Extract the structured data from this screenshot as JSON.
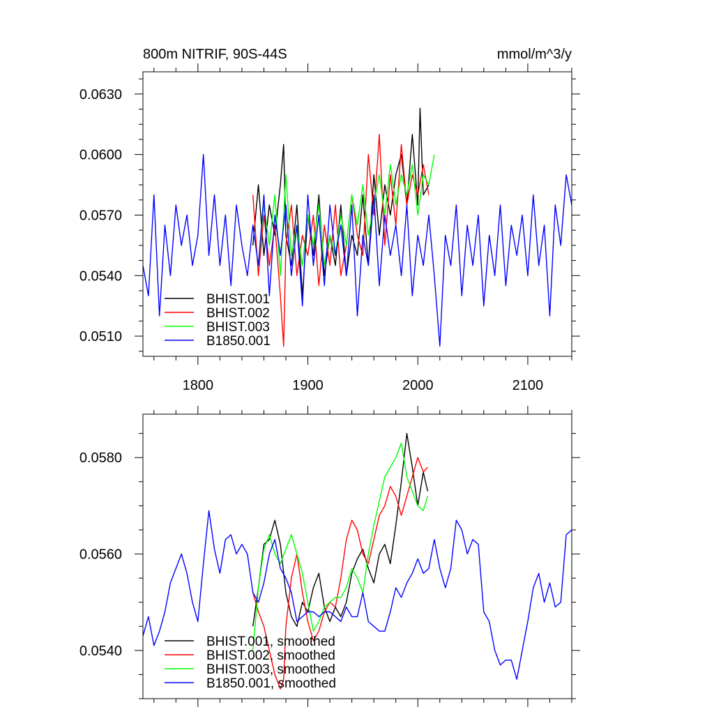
{
  "chart_data": [
    {
      "type": "line",
      "title": "800m NITRIF, 90S-44S",
      "units": "mmol/m^3/y",
      "xlim": [
        1750,
        2140
      ],
      "ylim": [
        0.05,
        0.0641
      ],
      "x_ticks": [
        1800,
        1900,
        2000,
        2100
      ],
      "x_tick_labels": [
        "1800",
        "1900",
        "2000",
        "2100"
      ],
      "y_ticks": [
        0.051,
        0.054,
        0.057,
        0.06,
        0.063
      ],
      "y_tick_labels": [
        "0.0510",
        "0.0540",
        "0.0570",
        "0.0600",
        "0.0630"
      ],
      "legend_position": "bottom-left",
      "series": [
        {
          "name": "BHIST.001",
          "color": "#000000",
          "x": [
            1850,
            1855,
            1860,
            1865,
            1870,
            1875,
            1878,
            1880,
            1885,
            1890,
            1895,
            1900,
            1905,
            1910,
            1915,
            1920,
            1925,
            1930,
            1935,
            1940,
            1945,
            1950,
            1955,
            1960,
            1965,
            1970,
            1975,
            1980,
            1985,
            1990,
            1995,
            2000,
            2002,
            2005,
            2010
          ],
          "y": [
            0.0555,
            0.0585,
            0.055,
            0.0575,
            0.056,
            0.0585,
            0.0605,
            0.056,
            0.0545,
            0.0575,
            0.053,
            0.057,
            0.055,
            0.058,
            0.054,
            0.056,
            0.0545,
            0.0575,
            0.054,
            0.056,
            0.055,
            0.058,
            0.0545,
            0.059,
            0.056,
            0.0585,
            0.057,
            0.059,
            0.06,
            0.0575,
            0.061,
            0.0575,
            0.0623,
            0.058,
            0.0585
          ]
        },
        {
          "name": "BHIST.002",
          "color": "#ff0000",
          "x": [
            1850,
            1855,
            1860,
            1865,
            1870,
            1875,
            1878,
            1880,
            1885,
            1890,
            1895,
            1900,
            1905,
            1910,
            1915,
            1920,
            1925,
            1930,
            1935,
            1940,
            1945,
            1950,
            1955,
            1960,
            1965,
            1970,
            1975,
            1980,
            1985,
            1990,
            1995,
            2000,
            2005,
            2010
          ],
          "y": [
            0.058,
            0.054,
            0.057,
            0.0545,
            0.0565,
            0.053,
            0.0505,
            0.0555,
            0.0575,
            0.054,
            0.056,
            0.055,
            0.057,
            0.0535,
            0.0565,
            0.0545,
            0.0575,
            0.054,
            0.0555,
            0.058,
            0.056,
            0.055,
            0.06,
            0.057,
            0.061,
            0.0555,
            0.059,
            0.0565,
            0.0605,
            0.0575,
            0.059,
            0.058,
            0.0595,
            0.058
          ]
        },
        {
          "name": "BHIST.003",
          "color": "#00ff00",
          "x": [
            1850,
            1855,
            1860,
            1865,
            1870,
            1875,
            1880,
            1885,
            1890,
            1895,
            1900,
            1905,
            1910,
            1915,
            1920,
            1925,
            1930,
            1935,
            1940,
            1945,
            1950,
            1955,
            1960,
            1965,
            1970,
            1975,
            1980,
            1985,
            1990,
            1995,
            2000,
            2005,
            2010,
            2015
          ],
          "y": [
            0.0565,
            0.0545,
            0.0575,
            0.0555,
            0.058,
            0.054,
            0.059,
            0.055,
            0.0565,
            0.0545,
            0.057,
            0.0555,
            0.0575,
            0.0545,
            0.056,
            0.055,
            0.057,
            0.0555,
            0.058,
            0.0565,
            0.0585,
            0.056,
            0.0575,
            0.059,
            0.057,
            0.0595,
            0.0575,
            0.059,
            0.058,
            0.0595,
            0.057,
            0.059,
            0.0585,
            0.06
          ]
        },
        {
          "name": "B1850.001",
          "color": "#0000ff",
          "x": [
            1750,
            1755,
            1760,
            1765,
            1770,
            1775,
            1780,
            1785,
            1790,
            1795,
            1800,
            1805,
            1810,
            1815,
            1820,
            1825,
            1830,
            1835,
            1840,
            1845,
            1850,
            1855,
            1860,
            1865,
            1870,
            1875,
            1880,
            1885,
            1890,
            1895,
            1900,
            1905,
            1910,
            1915,
            1920,
            1925,
            1930,
            1935,
            1940,
            1945,
            1950,
            1955,
            1960,
            1965,
            1970,
            1975,
            1980,
            1985,
            1990,
            1995,
            2000,
            2005,
            2010,
            2015,
            2020,
            2025,
            2030,
            2035,
            2040,
            2045,
            2050,
            2055,
            2060,
            2065,
            2070,
            2075,
            2080,
            2085,
            2090,
            2095,
            2100,
            2105,
            2110,
            2115,
            2120,
            2125,
            2130,
            2135,
            2140
          ],
          "y": [
            0.0545,
            0.053,
            0.058,
            0.052,
            0.0565,
            0.054,
            0.0575,
            0.0555,
            0.057,
            0.0545,
            0.056,
            0.06,
            0.055,
            0.058,
            0.0545,
            0.057,
            0.0535,
            0.0575,
            0.0555,
            0.054,
            0.0565,
            0.0545,
            0.058,
            0.053,
            0.057,
            0.055,
            0.0575,
            0.054,
            0.0565,
            0.0525,
            0.058,
            0.0545,
            0.057,
            0.0535,
            0.0575,
            0.055,
            0.0565,
            0.054,
            0.0575,
            0.052,
            0.056,
            0.0545,
            0.058,
            0.0535,
            0.057,
            0.055,
            0.0565,
            0.054,
            0.0575,
            0.053,
            0.056,
            0.0545,
            0.057,
            0.054,
            0.0505,
            0.056,
            0.0545,
            0.0575,
            0.053,
            0.0565,
            0.0545,
            0.057,
            0.0525,
            0.056,
            0.054,
            0.0575,
            0.0535,
            0.0565,
            0.055,
            0.057,
            0.054,
            0.058,
            0.0545,
            0.0565,
            0.052,
            0.0575,
            0.0555,
            0.059,
            0.0575
          ]
        }
      ]
    },
    {
      "type": "line",
      "xlim": [
        1750,
        2140
      ],
      "ylim": [
        0.053,
        0.0589
      ],
      "x_ticks": [
        1800,
        1900,
        2000,
        2100
      ],
      "y_ticks": [
        0.054,
        0.056,
        0.058
      ],
      "y_tick_labels": [
        "0.0540",
        "0.0560",
        "0.0580"
      ],
      "legend_position": "bottom-left",
      "series": [
        {
          "name": "BHIST.001, smoothed",
          "color": "#000000",
          "x": [
            1850,
            1855,
            1860,
            1865,
            1870,
            1875,
            1880,
            1885,
            1890,
            1895,
            1900,
            1905,
            1910,
            1915,
            1920,
            1925,
            1930,
            1935,
            1940,
            1945,
            1950,
            1955,
            1960,
            1965,
            1970,
            1975,
            1980,
            1985,
            1990,
            1995,
            2000,
            2005,
            2009
          ],
          "y": [
            0.0545,
            0.0553,
            0.0562,
            0.0563,
            0.0567,
            0.0562,
            0.0552,
            0.0547,
            0.0545,
            0.055,
            0.0548,
            0.0553,
            0.0556,
            0.0549,
            0.0546,
            0.0549,
            0.0547,
            0.055,
            0.0556,
            0.0559,
            0.0561,
            0.0557,
            0.0554,
            0.056,
            0.0562,
            0.0558,
            0.0566,
            0.0575,
            0.0585,
            0.0578,
            0.057,
            0.0577,
            0.0573
          ]
        },
        {
          "name": "BHIST.002, smoothed",
          "color": "#ff0000",
          "x": [
            1850,
            1855,
            1860,
            1865,
            1870,
            1875,
            1878,
            1880,
            1885,
            1890,
            1895,
            1900,
            1905,
            1910,
            1915,
            1920,
            1925,
            1930,
            1935,
            1940,
            1945,
            1950,
            1955,
            1960,
            1965,
            1970,
            1975,
            1980,
            1985,
            1990,
            1995,
            2000,
            2005,
            2009
          ],
          "y": [
            0.0552,
            0.0548,
            0.0545,
            0.054,
            0.0535,
            0.0532,
            0.0534,
            0.0545,
            0.0555,
            0.056,
            0.0552,
            0.0546,
            0.0542,
            0.0544,
            0.0548,
            0.055,
            0.0549,
            0.0555,
            0.0563,
            0.0567,
            0.0565,
            0.056,
            0.0558,
            0.0563,
            0.0568,
            0.057,
            0.0574,
            0.0572,
            0.0568,
            0.0572,
            0.0576,
            0.058,
            0.0577,
            0.0578
          ]
        },
        {
          "name": "BHIST.003, smoothed",
          "color": "#00ff00",
          "x": [
            1850,
            1855,
            1860,
            1865,
            1870,
            1875,
            1880,
            1885,
            1890,
            1895,
            1900,
            1905,
            1910,
            1915,
            1920,
            1925,
            1930,
            1935,
            1940,
            1945,
            1950,
            1955,
            1960,
            1965,
            1970,
            1975,
            1980,
            1985,
            1990,
            1995,
            2000,
            2005,
            2009
          ],
          "y": [
            0.054,
            0.0553,
            0.0561,
            0.0564,
            0.056,
            0.0558,
            0.0561,
            0.0564,
            0.056,
            0.0556,
            0.055,
            0.0544,
            0.0546,
            0.0549,
            0.055,
            0.0551,
            0.0551,
            0.0553,
            0.0557,
            0.0555,
            0.0552,
            0.056,
            0.0566,
            0.0571,
            0.0576,
            0.0578,
            0.058,
            0.0583,
            0.0576,
            0.0573,
            0.057,
            0.0569,
            0.0572
          ]
        },
        {
          "name": "B1850.001, smoothed",
          "color": "#0000ff",
          "x": [
            1750,
            1755,
            1760,
            1765,
            1770,
            1775,
            1780,
            1785,
            1790,
            1795,
            1800,
            1805,
            1810,
            1815,
            1820,
            1825,
            1830,
            1835,
            1840,
            1845,
            1850,
            1855,
            1860,
            1865,
            1870,
            1875,
            1880,
            1885,
            1890,
            1895,
            1900,
            1905,
            1910,
            1915,
            1920,
            1925,
            1930,
            1935,
            1940,
            1945,
            1950,
            1955,
            1960,
            1965,
            1970,
            1975,
            1980,
            1985,
            1990,
            1995,
            2000,
            2005,
            2010,
            2015,
            2020,
            2025,
            2030,
            2035,
            2040,
            2045,
            2050,
            2055,
            2060,
            2065,
            2070,
            2075,
            2080,
            2085,
            2090,
            2095,
            2100,
            2105,
            2110,
            2115,
            2120,
            2125,
            2130,
            2135,
            2140
          ],
          "y": [
            0.0543,
            0.0547,
            0.0541,
            0.0544,
            0.0548,
            0.0554,
            0.0557,
            0.056,
            0.0556,
            0.055,
            0.0546,
            0.0558,
            0.0569,
            0.0561,
            0.0556,
            0.0563,
            0.0564,
            0.056,
            0.0562,
            0.056,
            0.0552,
            0.055,
            0.0554,
            0.056,
            0.0563,
            0.0557,
            0.0555,
            0.0552,
            0.0546,
            0.0547,
            0.0548,
            0.0548,
            0.0547,
            0.0548,
            0.0548,
            0.0547,
            0.0546,
            0.0549,
            0.0547,
            0.0547,
            0.0552,
            0.0546,
            0.0545,
            0.0544,
            0.0544,
            0.0548,
            0.0553,
            0.0551,
            0.0554,
            0.0556,
            0.0559,
            0.0556,
            0.0557,
            0.0563,
            0.0557,
            0.0553,
            0.0557,
            0.0567,
            0.0565,
            0.056,
            0.0563,
            0.0562,
            0.0548,
            0.0546,
            0.054,
            0.0537,
            0.0538,
            0.0538,
            0.0534,
            0.054,
            0.0546,
            0.0553,
            0.0556,
            0.055,
            0.0554,
            0.0549,
            0.055,
            0.0564,
            0.0565
          ]
        }
      ]
    }
  ]
}
